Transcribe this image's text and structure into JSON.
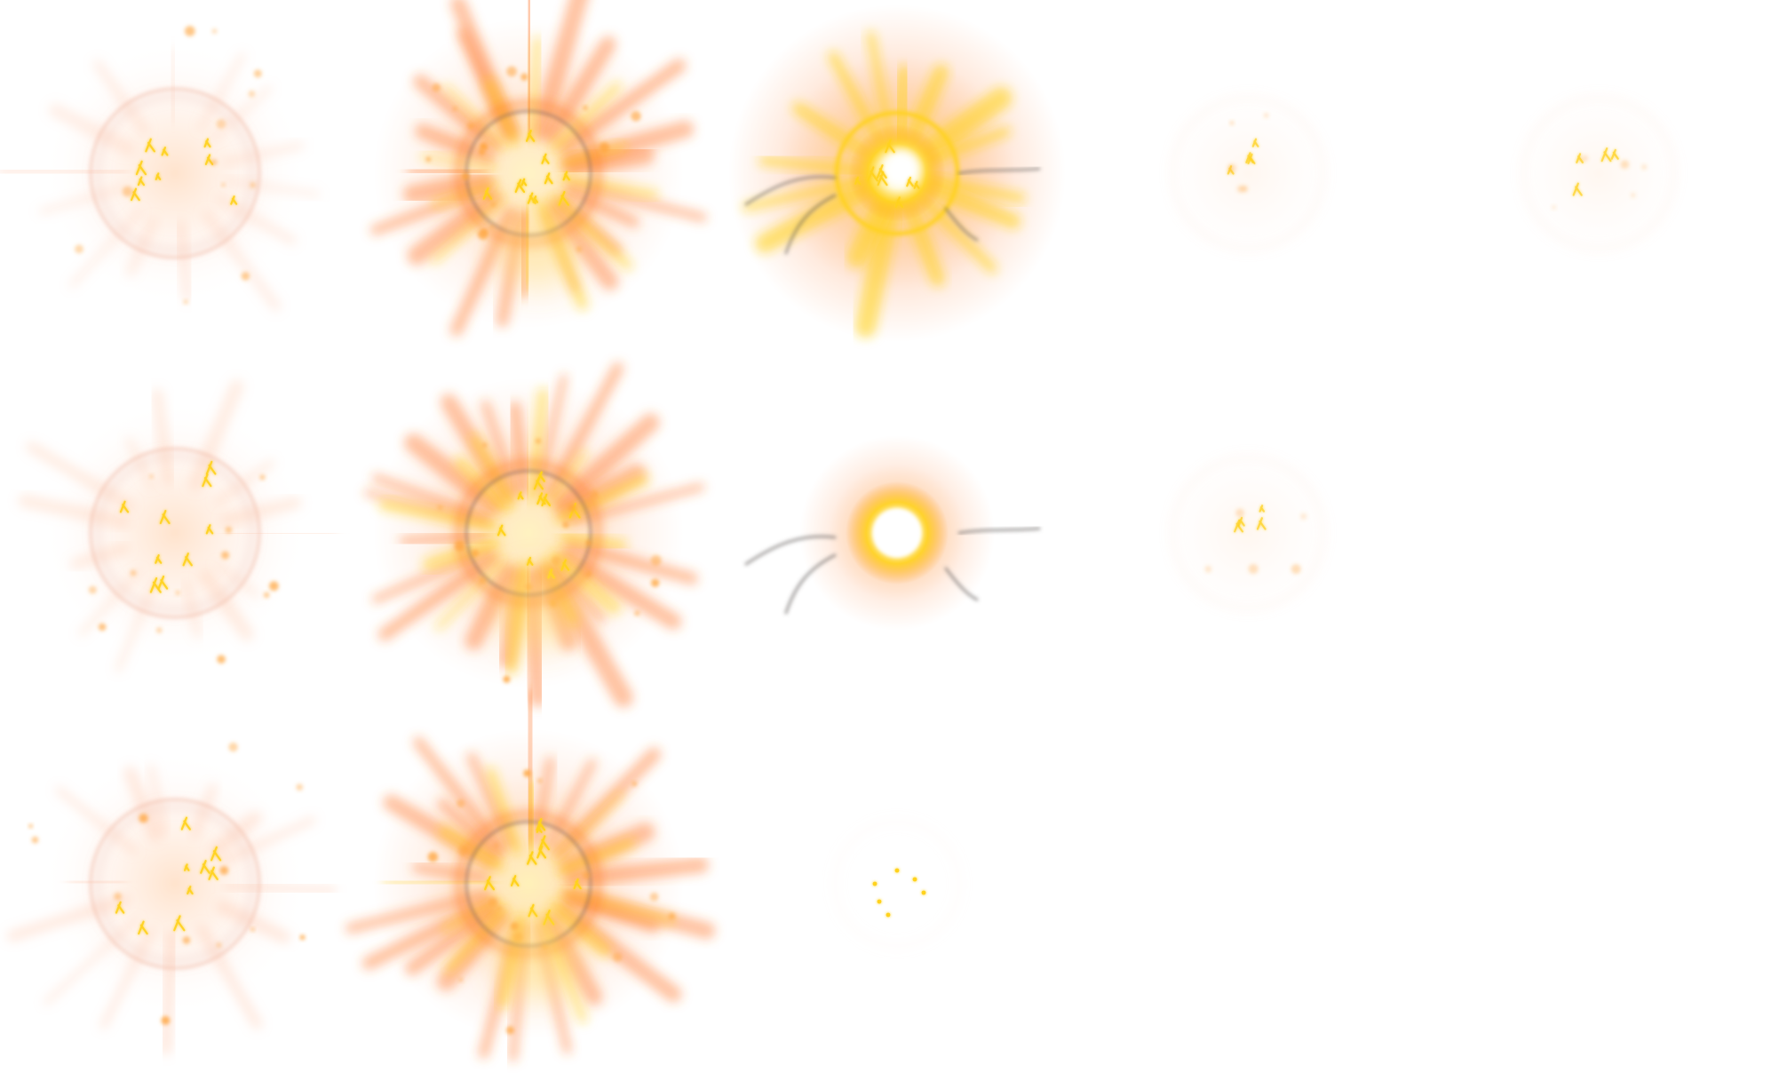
{
  "sprite_sheet": {
    "background": "#ffffff",
    "columns": 5,
    "rows": 3,
    "palette": {
      "ember": "#ff7a2a",
      "glow_orange": "#ffa640",
      "gold": "#ffd21f",
      "core": "#fff6c8",
      "white": "#ffffff",
      "smoke": "#5f5a58"
    },
    "frames": [
      {
        "row": 0,
        "col": 0,
        "name": "frame-1",
        "style": "runes",
        "intensity": 0.35
      },
      {
        "row": 0,
        "col": 1,
        "name": "frame-2",
        "style": "burst",
        "intensity": 0.75
      },
      {
        "row": 0,
        "col": 2,
        "name": "frame-3",
        "style": "flare",
        "intensity": 1.0
      },
      {
        "row": 0,
        "col": 3,
        "name": "frame-4",
        "style": "fade",
        "intensity": 0.18
      },
      {
        "row": 0,
        "col": 4,
        "name": "frame-5",
        "style": "fade",
        "intensity": 0.15
      },
      {
        "row": 1,
        "col": 0,
        "name": "frame-6",
        "style": "runes",
        "intensity": 0.45
      },
      {
        "row": 1,
        "col": 1,
        "name": "frame-7",
        "style": "burst",
        "intensity": 0.8
      },
      {
        "row": 1,
        "col": 2,
        "name": "frame-8",
        "style": "orb",
        "intensity": 0.95
      },
      {
        "row": 1,
        "col": 3,
        "name": "frame-9",
        "style": "fade",
        "intensity": 0.2
      },
      {
        "row": 2,
        "col": 0,
        "name": "frame-10",
        "style": "runes",
        "intensity": 0.55
      },
      {
        "row": 2,
        "col": 1,
        "name": "frame-11",
        "style": "burst",
        "intensity": 0.9
      },
      {
        "row": 2,
        "col": 2,
        "name": "frame-12",
        "style": "sparks",
        "intensity": 0.12
      }
    ]
  }
}
